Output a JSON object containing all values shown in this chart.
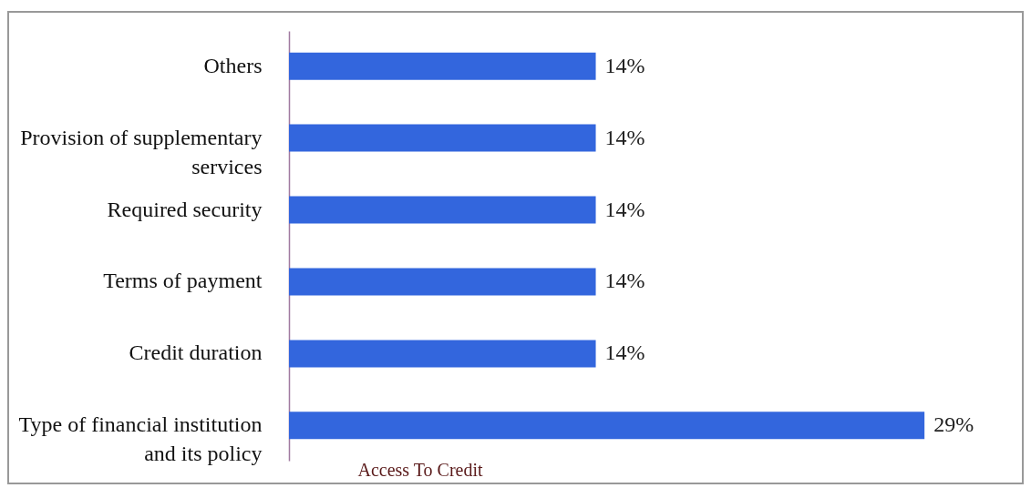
{
  "chart_data": {
    "type": "bar",
    "orientation": "horizontal",
    "xlabel": "Access To Credit",
    "categories": [
      "Others",
      "Provision of supplementary services",
      "Required security",
      "Terms of payment",
      "Credit duration",
      "Type of financial institution and its policy"
    ],
    "values": [
      14,
      14,
      14,
      14,
      14,
      29
    ],
    "value_labels": [
      "14%",
      "14%",
      "14%",
      "14%",
      "14%",
      "29%"
    ],
    "color": "#3366dd"
  }
}
